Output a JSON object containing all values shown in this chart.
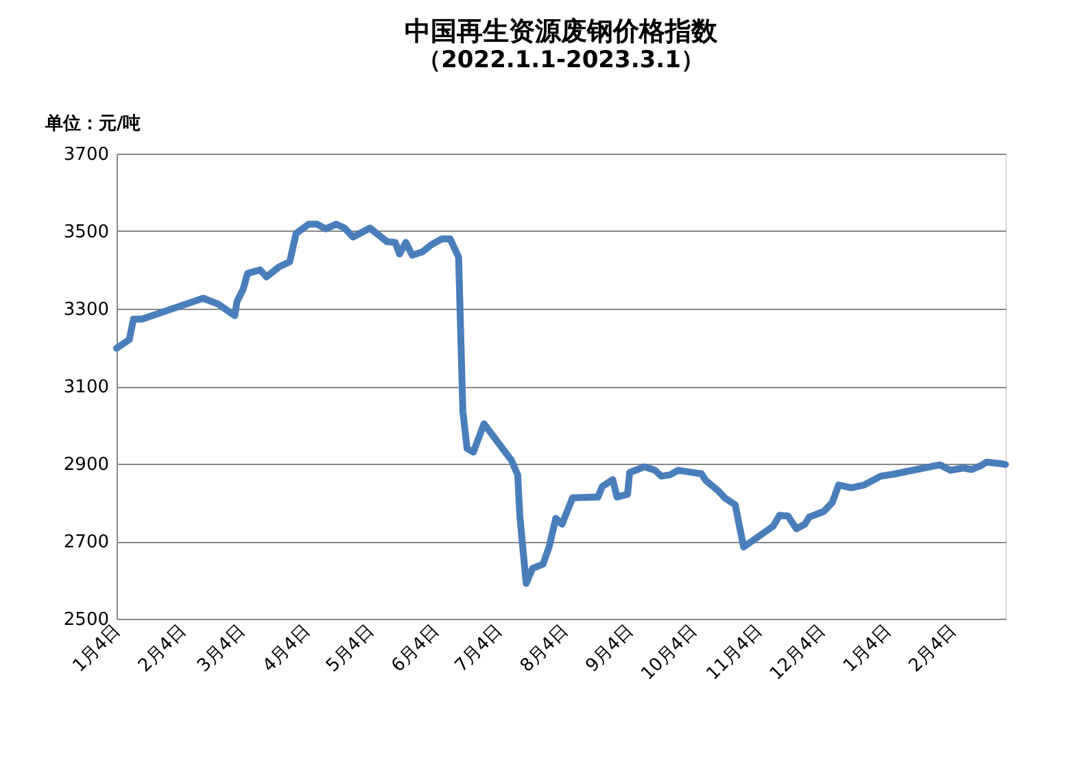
{
  "chart_data": {
    "type": "line",
    "title": "中国再生资源废钢价格指数",
    "subtitle": "（2022.1.1-2023.3.1）",
    "annotations": [
      "单位：元/吨"
    ],
    "x": [
      "2022-01-04",
      "2022-01-10",
      "2022-01-12",
      "2022-01-16",
      "2022-02-14",
      "2022-02-21",
      "2022-03-01",
      "2022-03-02",
      "2022-03-05",
      "2022-03-07",
      "2022-03-13",
      "2022-03-16",
      "2022-03-22",
      "2022-03-27",
      "2022-03-30",
      "2022-04-05",
      "2022-04-09",
      "2022-04-13",
      "2022-04-18",
      "2022-04-22",
      "2022-04-26",
      "2022-05-04",
      "2022-05-12",
      "2022-05-16",
      "2022-05-18",
      "2022-05-21",
      "2022-05-24",
      "2022-05-29",
      "2022-06-02",
      "2022-06-07",
      "2022-06-11",
      "2022-06-15",
      "2022-06-17",
      "2022-06-19",
      "2022-06-22",
      "2022-06-27",
      "2022-07-10",
      "2022-07-13",
      "2022-07-14",
      "2022-07-17",
      "2022-07-20",
      "2022-07-25",
      "2022-07-28",
      "2022-07-31",
      "2022-08-03",
      "2022-08-08",
      "2022-08-20",
      "2022-08-22",
      "2022-08-27",
      "2022-08-29",
      "2022-09-03",
      "2022-09-04",
      "2022-09-11",
      "2022-09-16",
      "2022-09-19",
      "2022-09-23",
      "2022-09-27",
      "2022-10-08",
      "2022-10-10",
      "2022-10-16",
      "2022-10-19",
      "2022-10-24",
      "2022-10-28",
      "2022-11-11",
      "2022-11-14",
      "2022-11-18",
      "2022-11-22",
      "2022-11-26",
      "2022-11-28",
      "2022-12-05",
      "2022-12-09",
      "2022-12-12",
      "2022-12-18",
      "2022-12-24",
      "2023-01-01",
      "2023-01-07",
      "2023-01-29",
      "2023-02-03",
      "2023-02-09",
      "2023-02-13",
      "2023-02-17",
      "2023-02-20",
      "2023-02-27",
      "2023-03-01"
    ],
    "series": [
      {
        "color": "#4a7ebb",
        "values": [
          3198,
          3220,
          3273,
          3273,
          3327,
          3312,
          3282,
          3318,
          3351,
          3391,
          3400,
          3382,
          3408,
          3421,
          3494,
          3518,
          3518,
          3506,
          3518,
          3508,
          3485,
          3508,
          3473,
          3471,
          3441,
          3471,
          3438,
          3447,
          3465,
          3480,
          3480,
          3433,
          3035,
          2939,
          2930,
          3003,
          2909,
          2871,
          2765,
          2591,
          2630,
          2641,
          2688,
          2759,
          2744,
          2812,
          2814,
          2841,
          2859,
          2814,
          2821,
          2877,
          2892,
          2883,
          2868,
          2871,
          2883,
          2874,
          2857,
          2830,
          2812,
          2794,
          2685,
          2739,
          2767,
          2765,
          2732,
          2744,
          2762,
          2777,
          2800,
          2845,
          2838,
          2845,
          2868,
          2873,
          2897,
          2883,
          2889,
          2885,
          2894,
          2904,
          2900,
          2898
        ]
      }
    ],
    "xlim": [
      "2022-01-04",
      "2023-03-01"
    ],
    "xticks": [
      {
        "value": "2022-01-04",
        "label": "1月4日"
      },
      {
        "value": "2022-02-04",
        "label": "2月4日"
      },
      {
        "value": "2022-03-04",
        "label": "3月4日"
      },
      {
        "value": "2022-04-04",
        "label": "4月4日"
      },
      {
        "value": "2022-05-04",
        "label": "5月4日"
      },
      {
        "value": "2022-06-04",
        "label": "6月4日"
      },
      {
        "value": "2022-07-04",
        "label": "7月4日"
      },
      {
        "value": "2022-08-04",
        "label": "8月4日"
      },
      {
        "value": "2022-09-04",
        "label": "9月4日"
      },
      {
        "value": "2022-10-04",
        "label": "10月4日"
      },
      {
        "value": "2022-11-04",
        "label": "11月4日"
      },
      {
        "value": "2022-12-04",
        "label": "12月4日"
      },
      {
        "value": "2023-01-04",
        "label": "1月4日"
      },
      {
        "value": "2023-02-04",
        "label": "2月4日"
      }
    ],
    "ylim": [
      2500,
      3700
    ],
    "yticks": [
      2500,
      2700,
      2900,
      3100,
      3300,
      3500,
      3700
    ],
    "grid": "y",
    "legend": false,
    "marker": "none",
    "line_style": "solid"
  }
}
